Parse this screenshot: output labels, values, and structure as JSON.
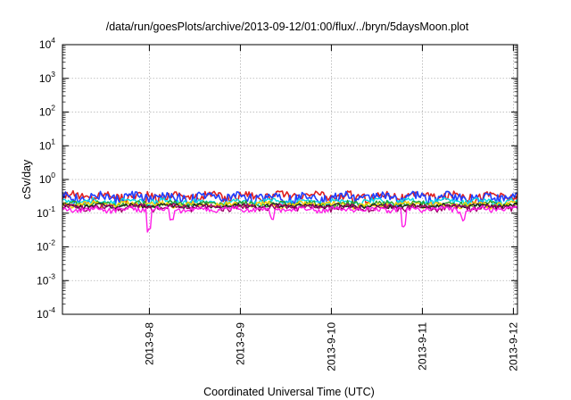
{
  "chart_data": {
    "type": "line",
    "title": "/data/run/goesPlots/archive/2013-09-12/01:00/flux/../bryn/5daysMoon.plot",
    "xlabel": "Coordinated Universal Time (UTC)",
    "ylabel": "cSv/day",
    "yscale": "log",
    "ylim": [
      0.0001,
      10000
    ],
    "xlim": [
      0,
      5
    ],
    "grid": true,
    "legend": "none",
    "y_ticks": [
      {
        "base": "10",
        "exp": "-4",
        "value": 0.0001
      },
      {
        "base": "10",
        "exp": "-3",
        "value": 0.001
      },
      {
        "base": "10",
        "exp": "-2",
        "value": 0.01
      },
      {
        "base": "10",
        "exp": "-1",
        "value": 0.1
      },
      {
        "base": "10",
        "exp": "0",
        "value": 1
      },
      {
        "base": "10",
        "exp": "1",
        "value": 10
      },
      {
        "base": "10",
        "exp": "2",
        "value": 100
      },
      {
        "base": "10",
        "exp": "3",
        "value": 1000
      },
      {
        "base": "10",
        "exp": "4",
        "value": 10000
      }
    ],
    "x_ticks": [
      {
        "label": "2013-9-8",
        "value": 0.955
      },
      {
        "label": "2013-9-9",
        "value": 1.955
      },
      {
        "label": "2013-9-10",
        "value": 2.955
      },
      {
        "label": "2013-9-11",
        "value": 3.955
      },
      {
        "label": "2013-9-12",
        "value": 4.955
      }
    ],
    "series": [
      {
        "color": "#e02020",
        "base": 0.33,
        "amp": 0.08,
        "phase": 0.0,
        "dips": [
          [
            0.9,
            0.55
          ],
          [
            3.2,
            0.6
          ]
        ]
      },
      {
        "color": "#1f3fff",
        "base": 0.3,
        "amp": 0.09,
        "phase": 1.3,
        "dips": [
          [
            1.4,
            0.6
          ],
          [
            4.6,
            0.65
          ]
        ]
      },
      {
        "color": "#00d8e8",
        "base": 0.22,
        "amp": 0.04,
        "phase": 2.1,
        "dips": []
      },
      {
        "color": "#2aa02a",
        "base": 0.19,
        "amp": 0.03,
        "phase": 0.7,
        "dips": []
      },
      {
        "color": "#f5d000",
        "base": 0.18,
        "amp": 0.03,
        "phase": 2.9,
        "dips": []
      },
      {
        "color": "#202020",
        "base": 0.165,
        "amp": 0.02,
        "phase": 1.7,
        "dips": []
      },
      {
        "color": "#a0006a",
        "base": 0.15,
        "amp": 0.025,
        "phase": 0.4,
        "dips": []
      },
      {
        "color": "#ff1ee6",
        "base": 0.13,
        "amp": 0.02,
        "phase": 2.4,
        "dips": [
          [
            0.95,
            0.28
          ],
          [
            1.2,
            0.45
          ],
          [
            3.75,
            0.32
          ],
          [
            2.3,
            0.55
          ],
          [
            4.4,
            0.6
          ]
        ]
      }
    ]
  }
}
